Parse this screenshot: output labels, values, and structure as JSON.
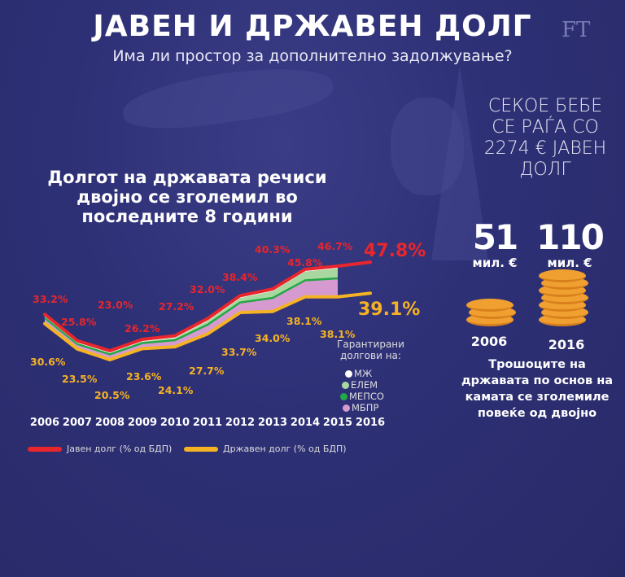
{
  "header": {
    "title": "ЈАВЕН И ДРЖАВЕН ДОЛГ",
    "subtitle": "Има ли простор за дополнително задолжување?",
    "logo": "FT"
  },
  "headline": "Долгот на државата речиси двојно се зголемил во последните 8 години",
  "chart_data": {
    "type": "line",
    "categories": [
      "2006",
      "2007",
      "2008",
      "2009",
      "2010",
      "2011",
      "2012",
      "2013",
      "2014",
      "2015",
      "2016"
    ],
    "series": [
      {
        "name": "Јавен долг (% од БДП)",
        "color": "#e8262c",
        "values": [
          33.2,
          25.8,
          23.0,
          26.2,
          27.2,
          32.0,
          38.4,
          40.3,
          45.8,
          46.7,
          47.8
        ],
        "labels": [
          "33.2%",
          "25.8%",
          "23.0%",
          "26.2%",
          "27.2%",
          "32.0%",
          "38.4%",
          "40.3%",
          "45.8%",
          "46.7%",
          "47.8%"
        ]
      },
      {
        "name": "Државен долг  (% од БДП)",
        "color": "#f5b323",
        "values": [
          30.6,
          23.5,
          20.5,
          23.6,
          24.1,
          27.7,
          33.7,
          34.0,
          38.1,
          38.1,
          39.1
        ],
        "labels": [
          "30.6%",
          "23.5%",
          "20.5%",
          "23.6%",
          "24.1%",
          "27.7%",
          "33.7%",
          "34.0%",
          "38.1%",
          "38.1%",
          "39.1%"
        ]
      }
    ],
    "guaranteed_title": "Гарантирани долгови на:",
    "guaranteed_legend": [
      {
        "name": "МЖ",
        "color": "#ffffff"
      },
      {
        "name": "ЕЛЕМ",
        "color": "#a8d8a0"
      },
      {
        "name": "МЕПСО",
        "color": "#22a845"
      },
      {
        "name": "МБПР",
        "color": "#d69ad0"
      }
    ],
    "legend_placement": "bottom"
  },
  "baby": "СЕКОЕ БЕБЕ СЕ РАЃА СО 2274 € ЈАВЕН ДОЛГ",
  "interest": {
    "items": [
      {
        "amount": "51",
        "unit": "мил. €",
        "year": "2006"
      },
      {
        "amount": "110",
        "unit": "мил. €",
        "year": "2016"
      }
    ],
    "caption": "Трошоците на државата по основ на камата се зголемиле повеќе од двојно",
    "coin_color": "#f0a030"
  }
}
